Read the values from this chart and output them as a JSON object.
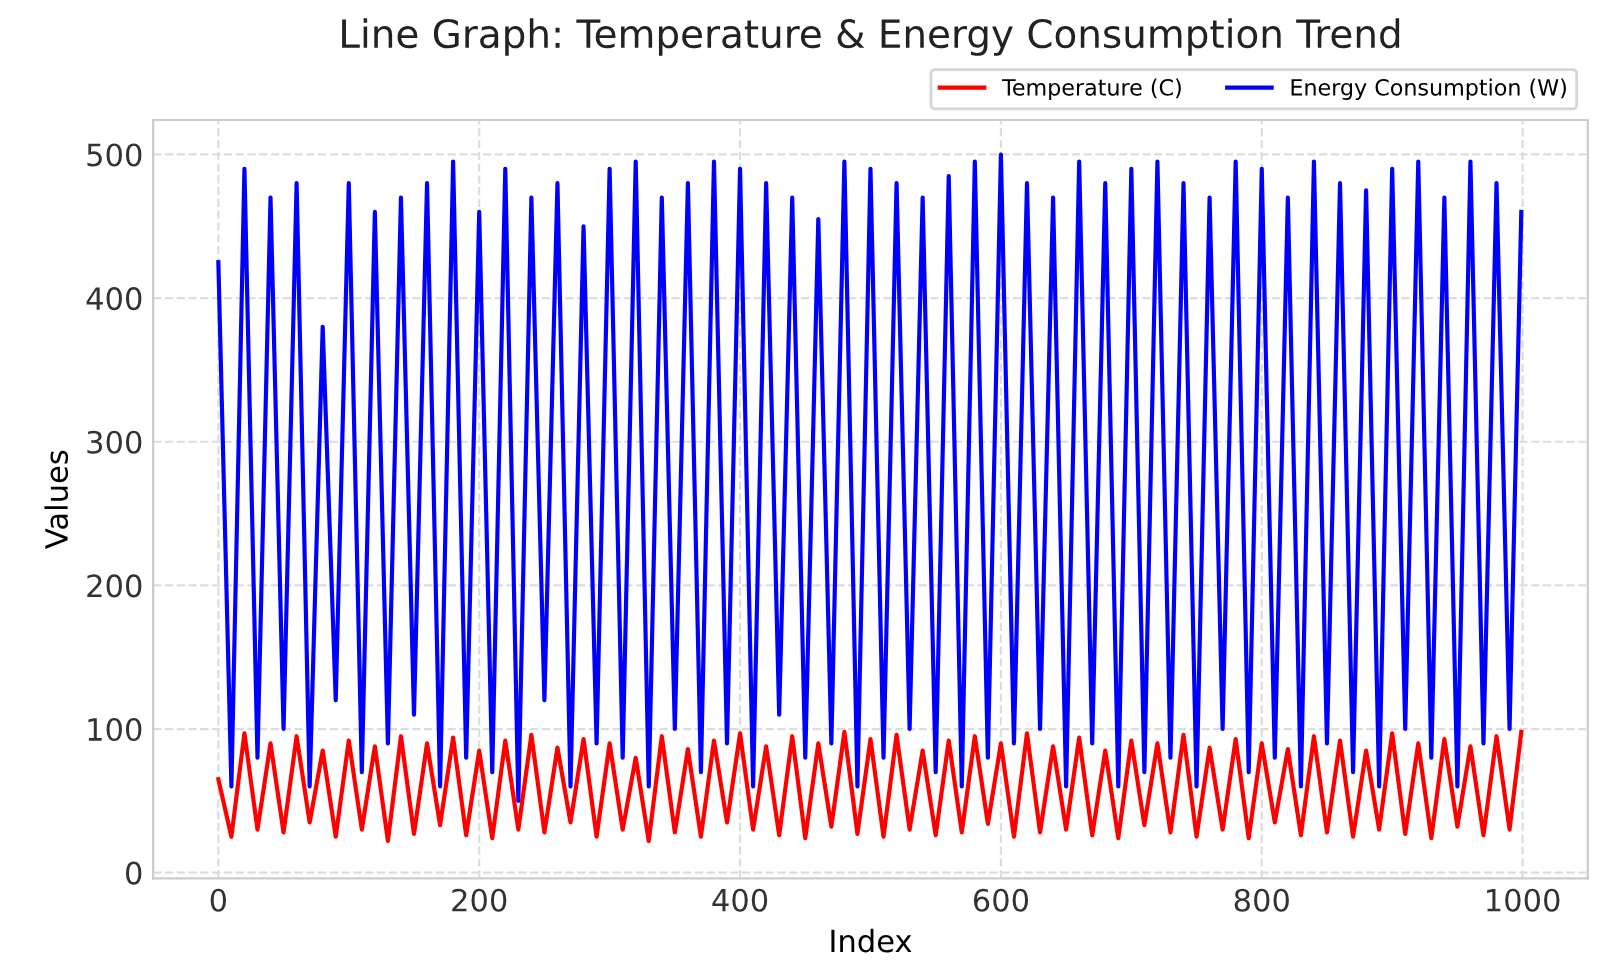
{
  "chart_data": {
    "type": "line",
    "title": "Line Graph: Temperature & Energy Consumption Trend",
    "xlabel": "Index",
    "ylabel": "Values",
    "x": [
      0,
      10,
      20,
      30,
      40,
      50,
      60,
      70,
      80,
      90,
      100,
      110,
      120,
      130,
      140,
      150,
      160,
      170,
      180,
      190,
      200,
      210,
      220,
      230,
      240,
      250,
      260,
      270,
      280,
      290,
      300,
      310,
      320,
      330,
      340,
      350,
      360,
      370,
      380,
      390,
      400,
      410,
      420,
      430,
      440,
      450,
      460,
      470,
      480,
      490,
      500,
      510,
      520,
      530,
      540,
      550,
      560,
      570,
      580,
      590,
      600,
      610,
      620,
      630,
      640,
      650,
      660,
      670,
      680,
      690,
      700,
      710,
      720,
      730,
      740,
      750,
      760,
      770,
      780,
      790,
      800,
      810,
      820,
      830,
      840,
      850,
      860,
      870,
      880,
      890,
      900,
      910,
      920,
      930,
      940,
      950,
      960,
      970,
      980,
      990,
      999
    ],
    "series": [
      {
        "name": "Temperature (C)",
        "color": "#ff0000",
        "values": [
          65,
          25,
          97,
          30,
          90,
          28,
          95,
          35,
          85,
          25,
          92,
          30,
          88,
          22,
          95,
          27,
          90,
          33,
          94,
          26,
          85,
          24,
          92,
          30,
          96,
          28,
          87,
          35,
          93,
          25,
          90,
          30,
          80,
          22,
          95,
          28,
          86,
          25,
          92,
          35,
          97,
          30,
          88,
          26,
          95,
          24,
          90,
          32,
          98,
          27,
          93,
          25,
          96,
          30,
          85,
          26,
          92,
          28,
          95,
          34,
          90,
          25,
          97,
          28,
          88,
          30,
          94,
          26,
          85,
          24,
          92,
          33,
          90,
          28,
          96,
          25,
          87,
          30,
          93,
          24,
          90,
          35,
          86,
          26,
          95,
          28,
          92,
          25,
          85,
          30,
          97,
          27,
          90,
          24,
          93,
          32,
          88,
          26,
          95,
          30,
          98
        ]
      },
      {
        "name": "Energy Consumption (W)",
        "color": "#0000ff",
        "values": [
          425,
          60,
          490,
          80,
          470,
          100,
          480,
          60,
          380,
          120,
          480,
          70,
          460,
          90,
          470,
          110,
          480,
          60,
          495,
          80,
          460,
          70,
          490,
          50,
          470,
          120,
          480,
          60,
          450,
          90,
          490,
          80,
          495,
          60,
          470,
          100,
          480,
          70,
          495,
          90,
          490,
          60,
          480,
          110,
          470,
          80,
          455,
          90,
          495,
          60,
          490,
          80,
          480,
          100,
          470,
          70,
          485,
          60,
          495,
          80,
          500,
          90,
          480,
          100,
          470,
          60,
          495,
          90,
          480,
          60,
          490,
          70,
          495,
          80,
          480,
          60,
          470,
          100,
          495,
          70,
          490,
          80,
          470,
          60,
          495,
          90,
          480,
          70,
          475,
          60,
          490,
          100,
          495,
          80,
          470,
          60,
          495,
          90,
          480,
          100,
          460
        ]
      }
    ],
    "xlim": [
      -50,
      1050
    ],
    "ylim": [
      -4,
      524
    ],
    "xticks": [
      0,
      200,
      400,
      600,
      800,
      1000
    ],
    "yticks": [
      0,
      100,
      200,
      300,
      400,
      500
    ],
    "grid": true,
    "legend": "top right",
    "line_style": "solid",
    "marker": "none"
  }
}
